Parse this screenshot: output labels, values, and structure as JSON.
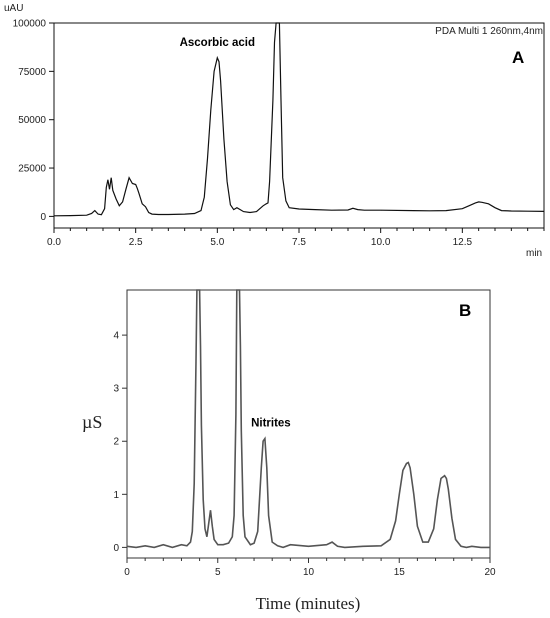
{
  "chart_data": [
    {
      "type": "line",
      "panel_label": "A",
      "title": "",
      "legend_text": "PDA Multi 1 260nm,4nm",
      "xlabel": "min",
      "ylabel": "uAU",
      "xlim": [
        0,
        15
      ],
      "ylim": [
        -6000,
        100000
      ],
      "x_ticks": [
        0.0,
        2.5,
        5.0,
        7.5,
        10.0,
        12.5
      ],
      "x_tick_labels": [
        "0.0",
        "2.5",
        "5.0",
        "7.5",
        "10.0",
        "12.5"
      ],
      "y_ticks": [
        0,
        25000,
        50000,
        75000,
        100000
      ],
      "y_tick_labels": [
        "0",
        "25000",
        "50000",
        "75000",
        "100000"
      ],
      "line_color": "#111111",
      "annotations": [
        {
          "text": "Ascorbic acid",
          "x": 5.0,
          "y": 82000
        }
      ],
      "series": [
        {
          "x": [
            0.0,
            0.5,
            1.0,
            1.15,
            1.25,
            1.35,
            1.45,
            1.55,
            1.6,
            1.65,
            1.7,
            1.75,
            1.8,
            1.9,
            2.0,
            2.1,
            2.2,
            2.3,
            2.4,
            2.5,
            2.55,
            2.6,
            2.7,
            2.8,
            2.9,
            3.0,
            3.2,
            3.5,
            4.0,
            4.3,
            4.5,
            4.6,
            4.7,
            4.8,
            4.9,
            5.0,
            5.05,
            5.1,
            5.2,
            5.3,
            5.4,
            5.5,
            5.6,
            5.7,
            5.8,
            6.0,
            6.2,
            6.4,
            6.5,
            6.55,
            6.6,
            6.7,
            6.75,
            6.8,
            6.85,
            6.9,
            6.95,
            7.0,
            7.1,
            7.2,
            7.5,
            8.0,
            8.5,
            9.0,
            9.15,
            9.3,
            9.5,
            10.0,
            11.0,
            11.5,
            12.0,
            12.5,
            12.7,
            12.9,
            13.0,
            13.1,
            13.3,
            13.5,
            13.7,
            14.0,
            14.5,
            15.0
          ],
          "y": [
            300,
            400,
            600,
            1500,
            3000,
            1200,
            900,
            4000,
            15000,
            19000,
            14000,
            20000,
            13500,
            9000,
            5500,
            7500,
            14000,
            20000,
            17000,
            16500,
            14500,
            12000,
            6500,
            5000,
            2000,
            1200,
            1000,
            1000,
            1200,
            1500,
            3000,
            10000,
            30000,
            55000,
            75000,
            82000,
            80000,
            70000,
            40000,
            18000,
            6000,
            3500,
            4500,
            3500,
            2500,
            2000,
            2500,
            5500,
            6500,
            7000,
            18000,
            60000,
            90000,
            100000,
            100000,
            100000,
            60000,
            20000,
            8000,
            4500,
            3800,
            3500,
            3200,
            3300,
            4200,
            3500,
            3200,
            3200,
            3000,
            2900,
            3000,
            4000,
            5500,
            7000,
            7500,
            7300,
            6500,
            4500,
            3000,
            2800,
            2700,
            2600
          ]
        }
      ]
    },
    {
      "type": "line",
      "panel_label": "B",
      "title": "",
      "xlabel": "Time (minutes)",
      "ylabel": "µS",
      "xlim": [
        0,
        20
      ],
      "ylim": [
        -0.2,
        4.85
      ],
      "x_ticks": [
        0,
        5,
        10,
        15,
        20
      ],
      "x_tick_labels": [
        "0",
        "5",
        "10",
        "15",
        "20"
      ],
      "y_ticks": [
        0,
        1,
        2,
        3,
        4
      ],
      "y_tick_labels": [
        "0",
        "1",
        "2",
        "3",
        "4"
      ],
      "line_color": "#555555",
      "annotations": [
        {
          "text": "Nitrites",
          "x": 7.6,
          "y": 2.05
        }
      ],
      "series": [
        {
          "x": [
            0.0,
            0.5,
            1.0,
            1.5,
            2.0,
            2.5,
            3.0,
            3.3,
            3.5,
            3.6,
            3.7,
            3.8,
            3.85,
            3.9,
            3.95,
            4.0,
            4.05,
            4.1,
            4.2,
            4.3,
            4.4,
            4.5,
            4.6,
            4.7,
            4.8,
            5.0,
            5.3,
            5.6,
            5.8,
            5.9,
            6.0,
            6.05,
            6.1,
            6.15,
            6.2,
            6.25,
            6.3,
            6.4,
            6.5,
            6.8,
            7.0,
            7.2,
            7.4,
            7.5,
            7.6,
            7.7,
            7.8,
            8.0,
            8.3,
            8.6,
            9.0,
            10.0,
            11.0,
            11.3,
            11.6,
            12.0,
            13.0,
            14.0,
            14.5,
            14.8,
            15.0,
            15.2,
            15.4,
            15.5,
            15.6,
            15.8,
            16.0,
            16.3,
            16.6,
            16.9,
            17.1,
            17.3,
            17.5,
            17.6,
            17.7,
            17.9,
            18.1,
            18.4,
            18.7,
            19.0,
            19.5,
            20.0
          ],
          "y": [
            0.02,
            0.0,
            0.03,
            0.0,
            0.05,
            0.0,
            0.05,
            0.03,
            0.1,
            0.3,
            1.2,
            3.5,
            4.9,
            4.9,
            4.9,
            4.9,
            3.8,
            2.3,
            0.9,
            0.35,
            0.2,
            0.45,
            0.7,
            0.4,
            0.15,
            0.05,
            0.05,
            0.08,
            0.2,
            0.6,
            2.5,
            4.9,
            4.9,
            4.9,
            4.9,
            3.8,
            2.2,
            0.6,
            0.2,
            0.05,
            0.08,
            0.3,
            1.5,
            2.0,
            2.05,
            1.5,
            0.6,
            0.1,
            0.03,
            0.0,
            0.05,
            0.02,
            0.05,
            0.1,
            0.02,
            0.0,
            0.02,
            0.03,
            0.15,
            0.5,
            1.0,
            1.45,
            1.58,
            1.6,
            1.5,
            1.0,
            0.4,
            0.1,
            0.1,
            0.35,
            0.9,
            1.3,
            1.35,
            1.3,
            1.1,
            0.55,
            0.15,
            0.02,
            0.0,
            0.02,
            0.0,
            0.0
          ]
        }
      ]
    }
  ]
}
